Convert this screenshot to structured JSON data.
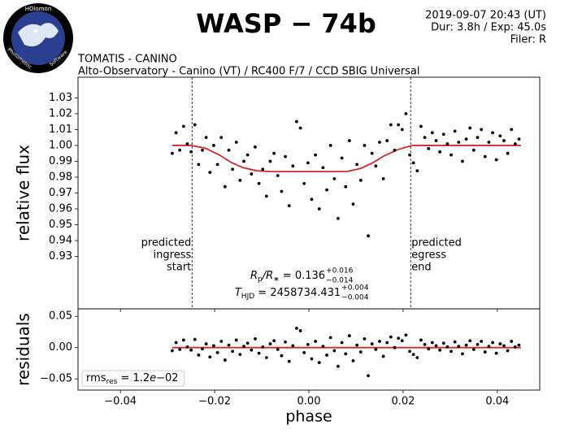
{
  "header": {
    "logo": {
      "top": "HOlomon",
      "left": "Photometric",
      "right": "Software"
    },
    "title": "WASP − 74b",
    "info": [
      "2019-09-07 20:43 (UT)",
      "Dur: 3.8h / Exp: 45.0s",
      "Filer: R"
    ],
    "observatory": [
      "TOMATIS - CANINO",
      "Alto-Observatory - Canino (VT) / RC400 F/7 / CCD SBIG Universal"
    ]
  },
  "chart_data": [
    {
      "type": "scatter",
      "ylabel": "relative flux",
      "color": "#000000",
      "xlim": [
        -0.049,
        0.049
      ],
      "ylim": [
        0.897,
        1.043
      ],
      "yticks": [
        0.93,
        0.94,
        0.95,
        0.96,
        0.97,
        0.98,
        0.99,
        {
          "value": 1.0,
          "label": "1.00"
        },
        1.01,
        1.02,
        1.03
      ],
      "x": [
        -0.029,
        -0.0282,
        -0.0274,
        -0.0266,
        -0.0258,
        -0.025,
        -0.0242,
        -0.0234,
        -0.0226,
        -0.0218,
        -0.021,
        -0.0202,
        -0.0194,
        -0.0186,
        -0.0178,
        -0.017,
        -0.0162,
        -0.0154,
        -0.0146,
        -0.0138,
        -0.013,
        -0.0122,
        -0.0114,
        -0.0106,
        -0.0098,
        -0.009,
        -0.0082,
        -0.0074,
        -0.0066,
        -0.0058,
        -0.005,
        -0.0042,
        -0.0034,
        -0.0026,
        -0.0018,
        -0.001,
        -0.0002,
        0.0006,
        0.0014,
        0.0022,
        0.003,
        0.0038,
        0.0046,
        0.0054,
        0.0062,
        0.007,
        0.0078,
        0.0086,
        0.0094,
        0.0102,
        0.011,
        0.0118,
        0.0126,
        0.0134,
        0.0142,
        0.015,
        0.0158,
        0.0166,
        0.0174,
        0.0182,
        0.019,
        0.0198,
        0.0206,
        0.0214,
        0.0222,
        0.023,
        0.0238,
        0.0246,
        0.0254,
        0.0262,
        0.027,
        0.0278,
        0.0286,
        0.0294,
        0.0302,
        0.031,
        0.0318,
        0.0326,
        0.0334,
        0.0342,
        0.035,
        0.0358,
        0.0366,
        0.0374,
        0.0382,
        0.039,
        0.0398,
        0.0406,
        0.0414,
        0.0422,
        0.043,
        0.0438,
        0.0446
      ],
      "values": [
        0.995,
        1.008,
        0.997,
        1.012,
        1.001,
        0.996,
        1.013,
        0.988,
        0.997,
        1.005,
        0.983,
        1.0,
        0.988,
        1.005,
        0.974,
        0.997,
        0.985,
        1.002,
        0.978,
        0.99,
        0.994,
        0.982,
        0.999,
        0.976,
        0.985,
        0.968,
        0.99,
        0.995,
        0.981,
        0.971,
        0.993,
        0.962,
        0.987,
        1.015,
        1.011,
        0.976,
        0.989,
        0.966,
        0.994,
        0.96,
        0.986,
        0.972,
        1.0,
        0.979,
        0.954,
        0.992,
        0.974,
        1.003,
        0.963,
        0.988,
        0.978,
        1.0,
        0.943,
        0.995,
        0.987,
        1.002,
        0.979,
        1.003,
        1.013,
        0.997,
        1.013,
        1.01,
        1.02,
        0.994,
        0.989,
        0.984,
        1.012,
        1.005,
        0.998,
        1.008,
        1.003,
        0.996,
        1.007,
        1.001,
        0.994,
        1.009,
        1.002,
        0.99,
        1.004,
        1.011,
        0.997,
        1.005,
        1.01,
        0.993,
        1.002,
        1.008,
        0.991,
        1.006,
        1.003,
        0.995,
        1.01,
        1.001,
        1.004
      ],
      "model": {
        "color": "#d62728",
        "x": [
          -0.029,
          -0.025,
          -0.022,
          -0.019,
          -0.0165,
          -0.014,
          -0.011,
          -0.008,
          0.008,
          0.011,
          0.0135,
          0.016,
          0.019,
          0.022,
          0.045
        ],
        "values": [
          1.0,
          1.0,
          0.9983,
          0.994,
          0.9893,
          0.986,
          0.984,
          0.9835,
          0.9835,
          0.9855,
          0.989,
          0.9935,
          0.9975,
          1.0,
          1.0
        ]
      },
      "markers": [
        {
          "x": -0.0248,
          "label": [
            "predicted",
            "ingress",
            "start"
          ]
        },
        {
          "x": 0.0216,
          "label": [
            "predicted",
            "egress",
            "end"
          ]
        }
      ],
      "annotations": [
        {
          "main": [
            [
              "R",
              "i"
            ],
            [
              "p",
              "sub"
            ],
            [
              "/R",
              "i"
            ],
            [
              "∗",
              "sub"
            ],
            [
              " = 0.136",
              "n"
            ]
          ],
          "sup": "+0.016",
          "sub": "−0.014"
        },
        {
          "main": [
            [
              "T",
              "i"
            ],
            [
              "HJD",
              "sub"
            ],
            [
              " = 2458734.431",
              "n"
            ]
          ],
          "sup": "+0.004",
          "sub": "−0.004"
        }
      ]
    },
    {
      "type": "scatter",
      "ylabel": "residuals",
      "xlabel": "phase",
      "color": "#000000",
      "xlim": [
        -0.049,
        0.049
      ],
      "ylim": [
        -0.068,
        0.062
      ],
      "xticks": [
        {
          "value": -0.04,
          "label": "−0.04"
        },
        {
          "value": -0.02,
          "label": "−0.02"
        },
        {
          "value": 0.0,
          "label": "0.00"
        },
        0.02,
        0.04
      ],
      "yticks": [
        {
          "value": -0.05,
          "label": "−0.05"
        },
        {
          "value": 0.0,
          "label": "0.00"
        },
        0.05
      ],
      "x": [
        -0.029,
        -0.0282,
        -0.0274,
        -0.0266,
        -0.0258,
        -0.025,
        -0.0242,
        -0.0234,
        -0.0226,
        -0.0218,
        -0.021,
        -0.0202,
        -0.0194,
        -0.0186,
        -0.0178,
        -0.017,
        -0.0162,
        -0.0154,
        -0.0146,
        -0.0138,
        -0.013,
        -0.0122,
        -0.0114,
        -0.0106,
        -0.0098,
        -0.009,
        -0.0082,
        -0.0074,
        -0.0066,
        -0.0058,
        -0.005,
        -0.0042,
        -0.0034,
        -0.0026,
        -0.0018,
        -0.001,
        -0.0002,
        0.0006,
        0.0014,
        0.0022,
        0.003,
        0.0038,
        0.0046,
        0.0054,
        0.0062,
        0.007,
        0.0078,
        0.0086,
        0.0094,
        0.0102,
        0.011,
        0.0118,
        0.0126,
        0.0134,
        0.0142,
        0.015,
        0.0158,
        0.0166,
        0.0174,
        0.0182,
        0.019,
        0.0198,
        0.0206,
        0.0214,
        0.0222,
        0.023,
        0.0238,
        0.0246,
        0.0254,
        0.0262,
        0.027,
        0.0278,
        0.0286,
        0.0294,
        0.0302,
        0.031,
        0.0318,
        0.0326,
        0.0334,
        0.0342,
        0.035,
        0.0358,
        0.0366,
        0.0374,
        0.0382,
        0.039,
        0.0398,
        0.0406,
        0.0414,
        0.0422,
        0.043,
        0.0438,
        0.0446
      ],
      "values": [
        -0.005,
        0.008,
        -0.003,
        0.012,
        0.001,
        -0.004,
        0.013,
        -0.012,
        -0.002,
        0.006,
        -0.015,
        0.003,
        -0.008,
        0.01,
        -0.02,
        0.004,
        -0.006,
        0.012,
        -0.011,
        0.002,
        0.007,
        -0.004,
        0.014,
        -0.009,
        0.001,
        -0.016,
        0.006,
        0.011,
        -0.003,
        -0.013,
        0.009,
        -0.022,
        0.003,
        0.031,
        0.027,
        -0.008,
        0.005,
        -0.018,
        0.01,
        -0.024,
        0.002,
        -0.012,
        0.016,
        -0.005,
        -0.03,
        0.008,
        -0.01,
        0.019,
        -0.021,
        0.004,
        -0.007,
        0.014,
        -0.045,
        0.006,
        -0.003,
        0.01,
        -0.014,
        0.008,
        0.017,
        0.0,
        0.015,
        0.011,
        0.02,
        -0.006,
        -0.011,
        -0.016,
        0.012,
        0.005,
        -0.002,
        0.008,
        0.003,
        -0.004,
        0.007,
        0.001,
        -0.006,
        0.009,
        0.002,
        -0.01,
        0.004,
        0.011,
        -0.003,
        0.005,
        0.01,
        -0.007,
        0.002,
        0.008,
        -0.009,
        0.006,
        0.003,
        -0.005,
        0.01,
        0.001,
        0.004
      ],
      "model": {
        "color": "#d62728",
        "x": [
          -0.029,
          0.045
        ],
        "values": [
          0,
          0
        ]
      },
      "annotations": [
        {
          "main": [
            [
              "rms",
              "n"
            ],
            [
              "res",
              "sub"
            ],
            [
              " = 1.2",
              "n"
            ],
            [
              "e",
              "i"
            ],
            [
              "−02",
              "n"
            ]
          ],
          "box": true
        }
      ]
    }
  ]
}
